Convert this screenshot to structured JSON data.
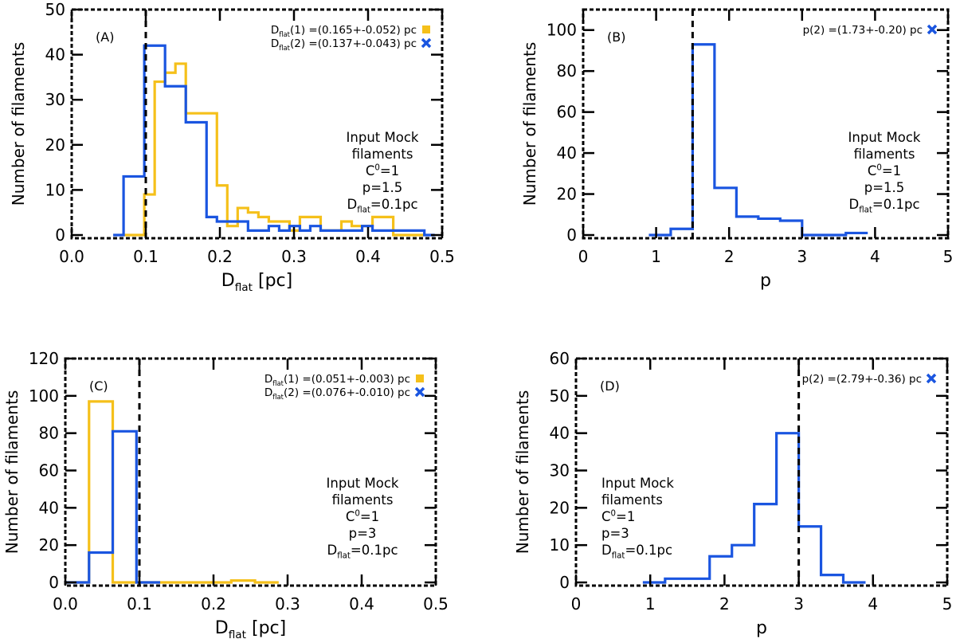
{
  "colors": {
    "series1": "#f5c01a",
    "series2": "#1a55e0",
    "axis": "#000000",
    "marker_line": "#000000"
  },
  "chart_data": [
    {
      "id": "A",
      "type": "histogram",
      "panel_label": "(A)",
      "xlabel_main": "D",
      "xlabel_sub": "flat",
      "xlabel_rest": " [pc]",
      "ylabel": "Number of filaments",
      "xlim": [
        0,
        0.5
      ],
      "ylim": [
        0,
        50
      ],
      "xticks": [
        0.0,
        0.1,
        0.2,
        0.3,
        0.4,
        0.5
      ],
      "xtick_labels": [
        "0.0",
        "0.1",
        "0.2",
        "0.3",
        "0.4",
        "0.5"
      ],
      "yticks": [
        0,
        10,
        20,
        30,
        40,
        50
      ],
      "ytick_labels": [
        "0",
        "10",
        "20",
        "30",
        "40",
        "50"
      ],
      "vline": 0.1,
      "legend": [
        {
          "main": "D",
          "sub": "flat",
          "rest": "(1)  =(0.165+-0.052)  pc",
          "marker": "square",
          "color": "series1"
        },
        {
          "main": "D",
          "sub": "flat",
          "rest": "(2)  =(0.137+-0.043)  pc",
          "marker": "cross",
          "color": "series2"
        }
      ],
      "annotation": {
        "lines": [
          {
            "text": "Input Mock"
          },
          {
            "text": "filaments"
          },
          {
            "main": "C",
            "sup": "0",
            "rest": "=1"
          },
          {
            "text": "p=1.5"
          },
          {
            "main": "D",
            "sub": "flat",
            "rest": "=0.1pc"
          }
        ]
      },
      "series": [
        {
          "name": "Dflat(1)",
          "color": "series1",
          "edges": [
            0.07,
            0.084,
            0.098,
            0.112,
            0.126,
            0.14,
            0.154,
            0.168,
            0.196,
            0.21,
            0.224,
            0.238,
            0.252,
            0.266,
            0.28,
            0.294,
            0.308,
            0.322,
            0.336,
            0.35,
            0.364,
            0.378,
            0.392,
            0.406,
            0.42,
            0.434,
            0.448,
            0.462,
            0.476
          ],
          "counts": [
            0,
            0,
            9,
            34,
            36,
            38,
            27,
            27,
            11,
            2,
            6,
            5,
            4,
            3,
            3,
            1,
            4,
            4,
            1,
            1,
            3,
            2,
            2,
            4,
            4,
            0,
            0,
            0
          ]
        },
        {
          "name": "Dflat(2)",
          "color": "series2",
          "edges": [
            0.056,
            0.07,
            0.084,
            0.098,
            0.112,
            0.126,
            0.14,
            0.154,
            0.168,
            0.182,
            0.196,
            0.21,
            0.224,
            0.238,
            0.252,
            0.266,
            0.28,
            0.294,
            0.308,
            0.322,
            0.336,
            0.35,
            0.364,
            0.378,
            0.392,
            0.406,
            0.42,
            0.434,
            0.448,
            0.462,
            0.476,
            0.49
          ],
          "counts": [
            0,
            13,
            13,
            42,
            42,
            33,
            33,
            25,
            25,
            4,
            3,
            3,
            3,
            1,
            1,
            2,
            1,
            2,
            1,
            2,
            1,
            1,
            1,
            1,
            2,
            1,
            1,
            1,
            1,
            1,
            0
          ]
        }
      ]
    },
    {
      "id": "B",
      "type": "histogram",
      "panel_label": "(B)",
      "xlabel_main": "p",
      "xlabel_sub": "",
      "xlabel_rest": "",
      "ylabel": "Number of filaments",
      "xlim": [
        0,
        5
      ],
      "ylim": [
        0,
        110
      ],
      "xticks": [
        0,
        1,
        2,
        3,
        4,
        5
      ],
      "xtick_labels": [
        "0",
        "1",
        "2",
        "3",
        "4",
        "5"
      ],
      "yticks": [
        0,
        20,
        40,
        60,
        80,
        100
      ],
      "ytick_labels": [
        "0",
        "20",
        "40",
        "60",
        "80",
        "100"
      ],
      "vline": 1.5,
      "legend": [
        {
          "main": "p(2)  =(1.73+-0.20)  pc",
          "sub": "",
          "rest": "",
          "marker": "cross",
          "color": "series2"
        }
      ],
      "annotation": {
        "lines": [
          {
            "text": "Input Mock"
          },
          {
            "text": "filaments"
          },
          {
            "main": "C",
            "sup": "0",
            "rest": "=1"
          },
          {
            "text": "p=1.5"
          },
          {
            "main": "D",
            "sub": "flat",
            "rest": "=0.1pc"
          }
        ]
      },
      "series": [
        {
          "name": "p(2)",
          "color": "series2",
          "edges": [
            0.9,
            1.2,
            1.5,
            1.8,
            2.1,
            2.4,
            2.7,
            3.0,
            3.3,
            3.6,
            3.9
          ],
          "counts": [
            0,
            3,
            93,
            23,
            9,
            8,
            7,
            0,
            0,
            1
          ]
        }
      ]
    },
    {
      "id": "C",
      "type": "histogram",
      "panel_label": "(C)",
      "xlabel_main": "D",
      "xlabel_sub": "flat",
      "xlabel_rest": " [pc]",
      "ylabel": "Number of filaments",
      "xlim": [
        0,
        0.5
      ],
      "ylim": [
        0,
        120
      ],
      "xticks": [
        0.0,
        0.1,
        0.2,
        0.3,
        0.4,
        0.5
      ],
      "xtick_labels": [
        "0.0",
        "0.1",
        "0.2",
        "0.3",
        "0.4",
        "0.5"
      ],
      "yticks": [
        0,
        20,
        40,
        60,
        80,
        100,
        120
      ],
      "ytick_labels": [
        "0",
        "20",
        "40",
        "60",
        "80",
        "100",
        "120"
      ],
      "vline": 0.1,
      "legend": [
        {
          "main": "D",
          "sub": "flat",
          "rest": "(1)  =(0.051+-0.003)  pc",
          "marker": "square",
          "color": "series1"
        },
        {
          "main": "D",
          "sub": "flat",
          "rest": "(2)  =(0.076+-0.010)  pc",
          "marker": "cross",
          "color": "series2"
        }
      ],
      "annotation": {
        "lines": [
          {
            "text": "Input Mock"
          },
          {
            "text": "filaments"
          },
          {
            "main": "C",
            "sup": "0",
            "rest": "=1"
          },
          {
            "text": "p=3"
          },
          {
            "main": "D",
            "sub": "flat",
            "rest": "=0.1pc"
          }
        ]
      },
      "series": [
        {
          "name": "Dflat(1)",
          "color": "series1",
          "edges": [
            0.0,
            0.032,
            0.064,
            0.096,
            0.128,
            0.16,
            0.192,
            0.224,
            0.256,
            0.288
          ],
          "counts": [
            0,
            97,
            0,
            0,
            0,
            0,
            0,
            1,
            0
          ]
        },
        {
          "name": "Dflat(2)",
          "color": "series2",
          "edges": [
            0.0,
            0.032,
            0.064,
            0.096,
            0.128
          ],
          "counts": [
            0,
            16,
            81,
            0
          ]
        }
      ]
    },
    {
      "id": "D",
      "type": "histogram",
      "panel_label": "(D)",
      "xlabel_main": "p",
      "xlabel_sub": "",
      "xlabel_rest": "",
      "ylabel": "Number of filaments",
      "xlim": [
        0,
        5
      ],
      "ylim": [
        0,
        60
      ],
      "xticks": [
        0,
        1,
        2,
        3,
        4,
        5
      ],
      "xtick_labels": [
        "0",
        "1",
        "2",
        "3",
        "4",
        "5"
      ],
      "yticks": [
        0,
        10,
        20,
        30,
        40,
        50,
        60
      ],
      "ytick_labels": [
        "0",
        "10",
        "20",
        "30",
        "40",
        "50",
        "60"
      ],
      "vline": 3,
      "legend": [
        {
          "main": "p(2)  =(2.79+-0.36)  pc",
          "sub": "",
          "rest": "",
          "marker": "cross",
          "color": "series2"
        }
      ],
      "annotation": {
        "lines": [
          {
            "text": "Input Mock"
          },
          {
            "text": "filaments"
          },
          {
            "main": "C",
            "sup": "0",
            "rest": "=1"
          },
          {
            "text": "p=3"
          },
          {
            "main": "D",
            "sub": "flat",
            "rest": "=0.1pc"
          }
        ]
      },
      "series": [
        {
          "name": "p(2)",
          "color": "series2",
          "edges": [
            0.9,
            1.2,
            1.5,
            1.8,
            2.1,
            2.4,
            2.7,
            3.0,
            3.3,
            3.6,
            3.9
          ],
          "counts": [
            0,
            1,
            1,
            7,
            10,
            21,
            40,
            15,
            2,
            0
          ]
        }
      ]
    }
  ]
}
